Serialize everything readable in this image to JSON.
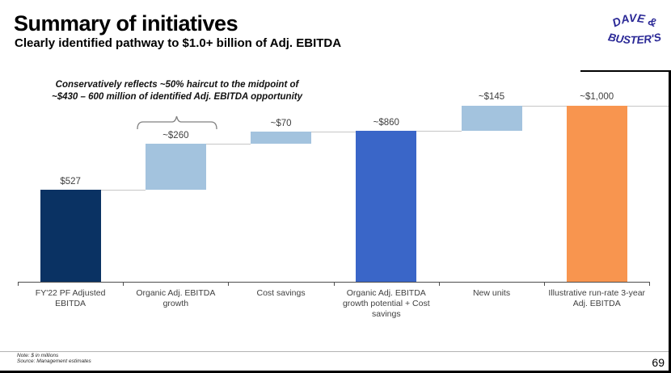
{
  "header": {
    "title": "Summary of initiatives",
    "subtitle": "Clearly identified pathway to $1.0+ billion of Adj. EBITDA"
  },
  "logo": {
    "line1": "DAVE &",
    "line2": "BUSTER'S",
    "color": "#2a2896"
  },
  "annotation": {
    "line1": "Conservatively reflects ~50% haircut to the midpoint of",
    "line2": "~$430 – 600 million of identified Adj. EBITDA opportunity"
  },
  "chart_data": {
    "type": "bar",
    "subtype": "waterfall",
    "title": "",
    "ylim": [
      0,
      1050
    ],
    "grid": false,
    "categories": [
      "FY'22 PF Adjusted EBITDA",
      "Organic Adj. EBITDA growth",
      "Cost savings",
      "Organic Adj. EBITDA growth potential + Cost savings",
      "New units",
      "Illustrative run-rate 3-year Adj. EBITDA"
    ],
    "bars": [
      {
        "category": "FY'22 PF Adjusted EBITDA",
        "label": "$527",
        "value": 527,
        "start": 0,
        "end": 527,
        "color": "#0a3263"
      },
      {
        "category": "Organic Adj. EBITDA growth",
        "label": "~$260",
        "value": 260,
        "start": 527,
        "end": 787,
        "color": "#a3c3de"
      },
      {
        "category": "Cost savings",
        "label": "~$70",
        "value": 70,
        "start": 787,
        "end": 857,
        "color": "#a3c3de"
      },
      {
        "category": "Organic Adj. EBITDA growth potential + Cost savings",
        "label": "~$860",
        "value": 860,
        "start": 0,
        "end": 860,
        "color": "#3a66c8"
      },
      {
        "category": "New units",
        "label": "~$145",
        "value": 145,
        "start": 860,
        "end": 1005,
        "color": "#a3c3de"
      },
      {
        "category": "Illustrative run-rate 3-year Adj. EBITDA",
        "label": "~$1,000",
        "value": 1000,
        "start": 0,
        "end": 1005,
        "color": "#f8954f"
      }
    ],
    "bracket_target_category": "Organic Adj. EBITDA growth"
  },
  "footer": {
    "note": "Note: $ in millions",
    "source": "Source: Management estimates",
    "page_number": "69"
  },
  "colors": {
    "navy": "#0a3263",
    "light_blue": "#a3c3de",
    "royal_blue": "#3a66c8",
    "orange": "#f8954f",
    "connector_gray": "#c6c6c6",
    "axis_gray": "#4d4d4d",
    "value_text": "#404040",
    "logo_blue": "#2a2896"
  }
}
